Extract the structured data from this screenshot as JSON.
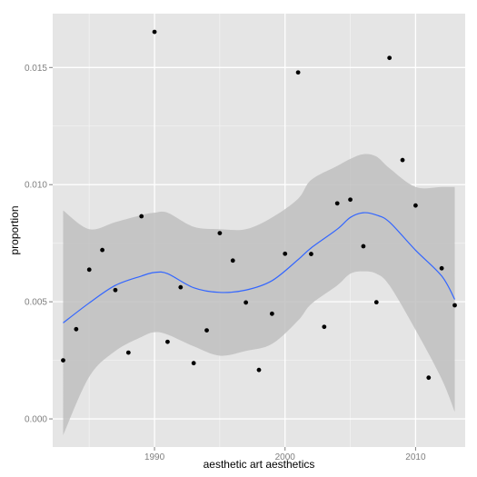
{
  "chart_data": {
    "type": "scatter",
    "xlabel": "aesthetic art aesthetics",
    "ylabel": "proportion",
    "xlim": [
      1982.2,
      2013.8
    ],
    "ylim": [
      -0.0012,
      0.0173
    ],
    "x_ticks": [
      1990,
      2000,
      2010
    ],
    "x_tick_labels": [
      "1990",
      "2000",
      "2010"
    ],
    "y_ticks": [
      0.0,
      0.005,
      0.01,
      0.015
    ],
    "y_tick_labels": [
      "0.000",
      "0.005",
      "0.010",
      "0.015"
    ],
    "grid": true,
    "points": [
      {
        "x": 1983,
        "y": 0.0025
      },
      {
        "x": 1984,
        "y": 0.00383
      },
      {
        "x": 1985,
        "y": 0.00637
      },
      {
        "x": 1986,
        "y": 0.00721
      },
      {
        "x": 1987,
        "y": 0.0055
      },
      {
        "x": 1988,
        "y": 0.00283
      },
      {
        "x": 1989,
        "y": 0.00865
      },
      {
        "x": 1990,
        "y": 0.01652
      },
      {
        "x": 1991,
        "y": 0.00329
      },
      {
        "x": 1992,
        "y": 0.00562
      },
      {
        "x": 1993,
        "y": 0.00238
      },
      {
        "x": 1994,
        "y": 0.00378
      },
      {
        "x": 1995,
        "y": 0.00793
      },
      {
        "x": 1996,
        "y": 0.00676
      },
      {
        "x": 1997,
        "y": 0.00497
      },
      {
        "x": 1998,
        "y": 0.00209
      },
      {
        "x": 1999,
        "y": 0.00449
      },
      {
        "x": 2000,
        "y": 0.00705
      },
      {
        "x": 2001,
        "y": 0.01479
      },
      {
        "x": 2002,
        "y": 0.00704
      },
      {
        "x": 2003,
        "y": 0.00393
      },
      {
        "x": 2004,
        "y": 0.0092
      },
      {
        "x": 2005,
        "y": 0.00936
      },
      {
        "x": 2006,
        "y": 0.00737
      },
      {
        "x": 2007,
        "y": 0.00498
      },
      {
        "x": 2008,
        "y": 0.01541
      },
      {
        "x": 2009,
        "y": 0.01105
      },
      {
        "x": 2010,
        "y": 0.00911
      },
      {
        "x": 2011,
        "y": 0.00176
      },
      {
        "x": 2012,
        "y": 0.00643
      },
      {
        "x": 2013,
        "y": 0.00485
      }
    ],
    "smooth": {
      "x": [
        1983,
        1985,
        1987,
        1989,
        1990,
        1991,
        1993,
        1995,
        1997,
        1999,
        2001,
        2002,
        2004,
        2005,
        2006,
        2007,
        2008,
        2010,
        2012,
        2013
      ],
      "y": [
        0.0041,
        0.00495,
        0.0057,
        0.0061,
        0.00625,
        0.0062,
        0.0056,
        0.0054,
        0.0055,
        0.0059,
        0.0068,
        0.0073,
        0.0081,
        0.0086,
        0.0088,
        0.0087,
        0.0084,
        0.0072,
        0.0061,
        0.0051
      ],
      "lower": [
        -0.0007,
        0.0018,
        0.0029,
        0.0035,
        0.0037,
        0.0036,
        0.0031,
        0.0027,
        0.0029,
        0.0032,
        0.0042,
        0.0049,
        0.0057,
        0.0062,
        0.0063,
        0.0062,
        0.0057,
        0.0038,
        0.0017,
        0.0003
      ],
      "upper": [
        0.0089,
        0.0081,
        0.0084,
        0.0087,
        0.0088,
        0.0088,
        0.0082,
        0.0081,
        0.0081,
        0.0086,
        0.0094,
        0.0102,
        0.0108,
        0.0111,
        0.0113,
        0.0112,
        0.0107,
        0.0099,
        0.0099,
        0.0099
      ]
    },
    "colors": {
      "panel": "#e5e5e5",
      "grid_major": "#ffffff",
      "grid_minor": "#f2f2f2",
      "ribbon": "#bfbfbf",
      "line": "#3366ff",
      "point": "#000000",
      "tick_label": "#7f7f7f",
      "axis_title": "#000000"
    }
  }
}
